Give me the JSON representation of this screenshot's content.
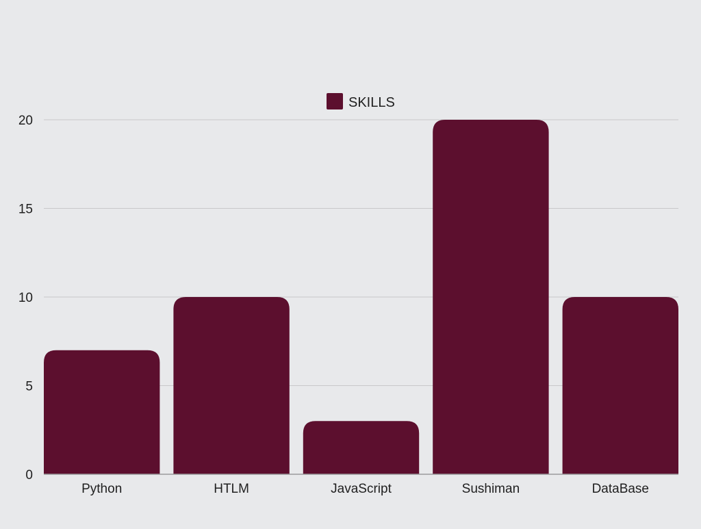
{
  "chart_data": {
    "type": "bar",
    "categories": [
      "Python",
      "HTLM",
      "JavaScript",
      "Sushiman",
      "DataBase"
    ],
    "series": [
      {
        "name": "SKILLS",
        "values": [
          7,
          10,
          3,
          20,
          10
        ]
      }
    ],
    "ylim": [
      0,
      20
    ],
    "yticks": [
      0,
      5,
      10,
      15,
      20
    ],
    "grid": true,
    "legend_position": "top",
    "colors": {
      "bar": "#5c0f2e",
      "background": "#e8e9eb",
      "grid": "#c8c8ca",
      "axis": "#9a9a9c"
    }
  }
}
